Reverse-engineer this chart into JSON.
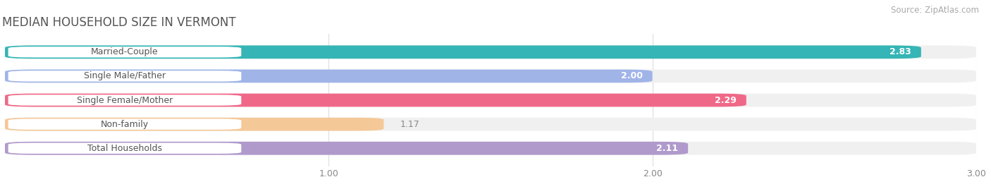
{
  "title": "MEDIAN HOUSEHOLD SIZE IN VERMONT",
  "source": "Source: ZipAtlas.com",
  "categories": [
    "Married-Couple",
    "Single Male/Father",
    "Single Female/Mother",
    "Non-family",
    "Total Households"
  ],
  "values": [
    2.83,
    2.0,
    2.29,
    1.17,
    2.11
  ],
  "bar_colors": [
    "#35b5b5",
    "#a0b4e8",
    "#f06888",
    "#f5c898",
    "#b09acc"
  ],
  "bar_bg_colors": [
    "#f0f0f0",
    "#f0f0f0",
    "#f0f0f0",
    "#f0f0f0",
    "#f0f0f0"
  ],
  "label_pill_color": "#ffffff",
  "xmin": 0.0,
  "xmax": 3.0,
  "xticks": [
    1.0,
    2.0,
    3.0
  ],
  "background_color": "#ffffff",
  "title_fontsize": 12,
  "source_fontsize": 8.5,
  "label_fontsize": 9,
  "value_fontsize": 9,
  "tick_fontsize": 9,
  "label_text_color": "#555555",
  "value_inside_color": "#ffffff",
  "value_outside_color": "#888888"
}
